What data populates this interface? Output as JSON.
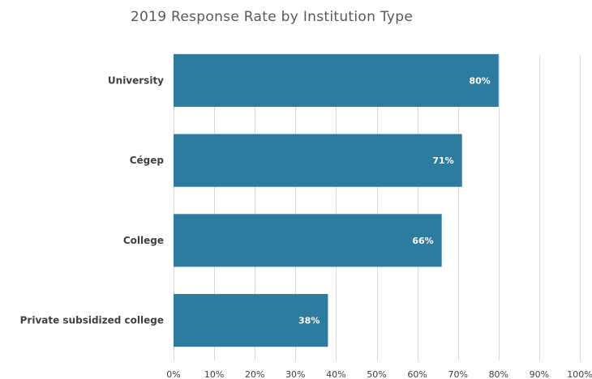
{
  "chart_data": {
    "type": "bar",
    "orientation": "horizontal",
    "title": "2019 Response Rate by Institution Type",
    "categories": [
      "University",
      "Cégep",
      "College",
      "Private subsidized college"
    ],
    "values": [
      80,
      71,
      66,
      38
    ],
    "data_labels": [
      "80%",
      "71%",
      "66%",
      "38%"
    ],
    "xlim": [
      0,
      100
    ],
    "x_ticks": [
      0,
      10,
      20,
      30,
      40,
      50,
      60,
      70,
      80,
      90,
      100
    ],
    "x_tick_labels": [
      "0%",
      "10%",
      "20%",
      "30%",
      "40%",
      "50%",
      "60%",
      "70%",
      "80%",
      "90%",
      "100%"
    ],
    "xlabel": "",
    "ylabel": "",
    "grid": "vertical",
    "legend": "none",
    "bar_color": "#2e7ba0"
  }
}
